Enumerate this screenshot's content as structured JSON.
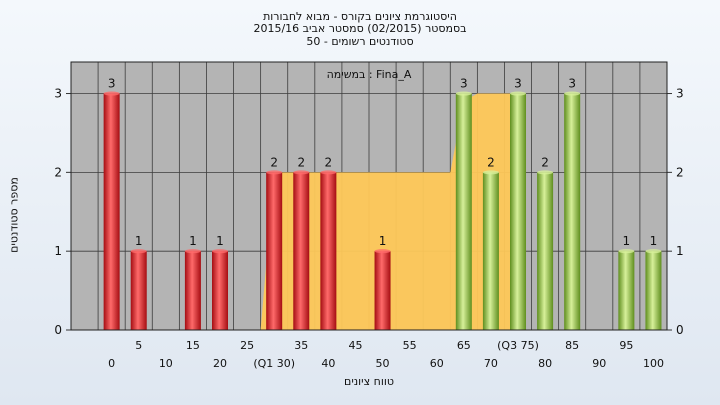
{
  "header": {
    "title_line1": "היסטוגרמת ציונים בקורס - מבוא לחבורות",
    "title_line2": "בסמסטר  (02/2015)  סמסטר אביב 2015/16",
    "title_line3": "סטודנטים רשומים - 50"
  },
  "chart_data": {
    "type": "bar",
    "series_label": "במשימה : Fina_A",
    "ylabel": "מספר סטודנטים",
    "xlabel": "טווח ציונים",
    "ylim": [
      0,
      3.4
    ],
    "y_ticks": [
      0,
      1,
      2,
      3
    ],
    "grid": true,
    "x_tick_labels": [
      {
        "x": 0,
        "label": "0",
        "row": 2
      },
      {
        "x": 5,
        "label": "5",
        "row": 1
      },
      {
        "x": 10,
        "label": "10",
        "row": 2
      },
      {
        "x": 15,
        "label": "15",
        "row": 1
      },
      {
        "x": 20,
        "label": "20",
        "row": 2
      },
      {
        "x": 25,
        "label": "25",
        "row": 1
      },
      {
        "x": 30,
        "label": "(Q1 30)",
        "row": 2
      },
      {
        "x": 35,
        "label": "35",
        "row": 1
      },
      {
        "x": 40,
        "label": "40",
        "row": 2
      },
      {
        "x": 45,
        "label": "45",
        "row": 1
      },
      {
        "x": 50,
        "label": "50",
        "row": 2
      },
      {
        "x": 55,
        "label": "55",
        "row": 1
      },
      {
        "x": 60,
        "label": "60",
        "row": 2
      },
      {
        "x": 65,
        "label": "65",
        "row": 1
      },
      {
        "x": 70,
        "label": "70",
        "row": 2
      },
      {
        "x": 75,
        "label": "(Q3 75)",
        "row": 1
      },
      {
        "x": 80,
        "label": "80",
        "row": 2
      },
      {
        "x": 85,
        "label": "85",
        "row": 1
      },
      {
        "x": 90,
        "label": "90",
        "row": 2
      },
      {
        "x": 95,
        "label": "95",
        "row": 1
      },
      {
        "x": 100,
        "label": "100",
        "row": 2
      }
    ],
    "bars": [
      {
        "x": 0,
        "value": 3,
        "color": "red"
      },
      {
        "x": 5,
        "value": 1,
        "color": "red"
      },
      {
        "x": 15,
        "value": 1,
        "color": "red"
      },
      {
        "x": 20,
        "value": 1,
        "color": "red"
      },
      {
        "x": 30,
        "value": 2,
        "color": "red"
      },
      {
        "x": 35,
        "value": 2,
        "color": "red"
      },
      {
        "x": 40,
        "value": 2,
        "color": "red"
      },
      {
        "x": 50,
        "value": 1,
        "color": "red"
      },
      {
        "x": 65,
        "value": 3,
        "color": "green"
      },
      {
        "x": 70,
        "value": 2,
        "color": "green"
      },
      {
        "x": 75,
        "value": 3,
        "color": "green"
      },
      {
        "x": 80,
        "value": 2,
        "color": "green"
      },
      {
        "x": 85,
        "value": 3,
        "color": "green"
      },
      {
        "x": 95,
        "value": 1,
        "color": "green"
      },
      {
        "x": 100,
        "value": 1,
        "color": "green"
      }
    ],
    "quartile_area": [
      {
        "x": 27.5,
        "y": 0
      },
      {
        "x": 30,
        "y": 2
      },
      {
        "x": 62.5,
        "y": 2
      },
      {
        "x": 65,
        "y": 2.9
      },
      {
        "x": 67.5,
        "y": 3
      },
      {
        "x": 75,
        "y": 3
      },
      {
        "x": 75,
        "y": 0
      }
    ],
    "colors": {
      "plot_bg": "#b4b4b4",
      "grid": "#3c3c3c",
      "area": "#fec858",
      "red": "#e8202a",
      "red_light": "#ff6a6a",
      "red_dark": "#a50d12",
      "green": "#9ccf46",
      "green_light": "#d7f09a",
      "green_dark": "#5f8e1e"
    }
  }
}
